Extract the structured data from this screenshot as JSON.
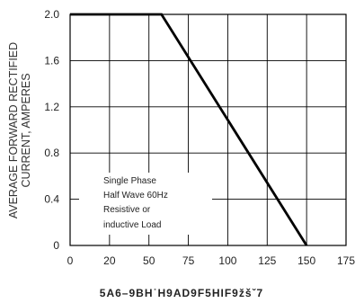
{
  "chart_data": {
    "type": "line",
    "xlabel": "5A6–9BH˙H9AD9F5HIF9žšˇ7",
    "ylabel_lines": [
      "AVERAGE FORWARD RECTIFIED",
      "CURRENT, AMPERES"
    ],
    "x_ticks": [
      "0",
      "20",
      "50",
      "75",
      "100",
      "125",
      "150",
      "175"
    ],
    "y_ticks": [
      "0",
      "0.4",
      "0.8",
      "1.2",
      "1.6",
      "2.0"
    ],
    "xlim": [
      0,
      175
    ],
    "ylim": [
      0,
      2.0
    ],
    "grid": true,
    "annotation_lines": [
      "Single Phase",
      "Half Wave 60Hz",
      "Resistive or",
      "inductive Load"
    ],
    "series": [
      {
        "x": [
          0,
          58,
          150
        ],
        "y": [
          2.0,
          2.0,
          0
        ]
      }
    ]
  }
}
